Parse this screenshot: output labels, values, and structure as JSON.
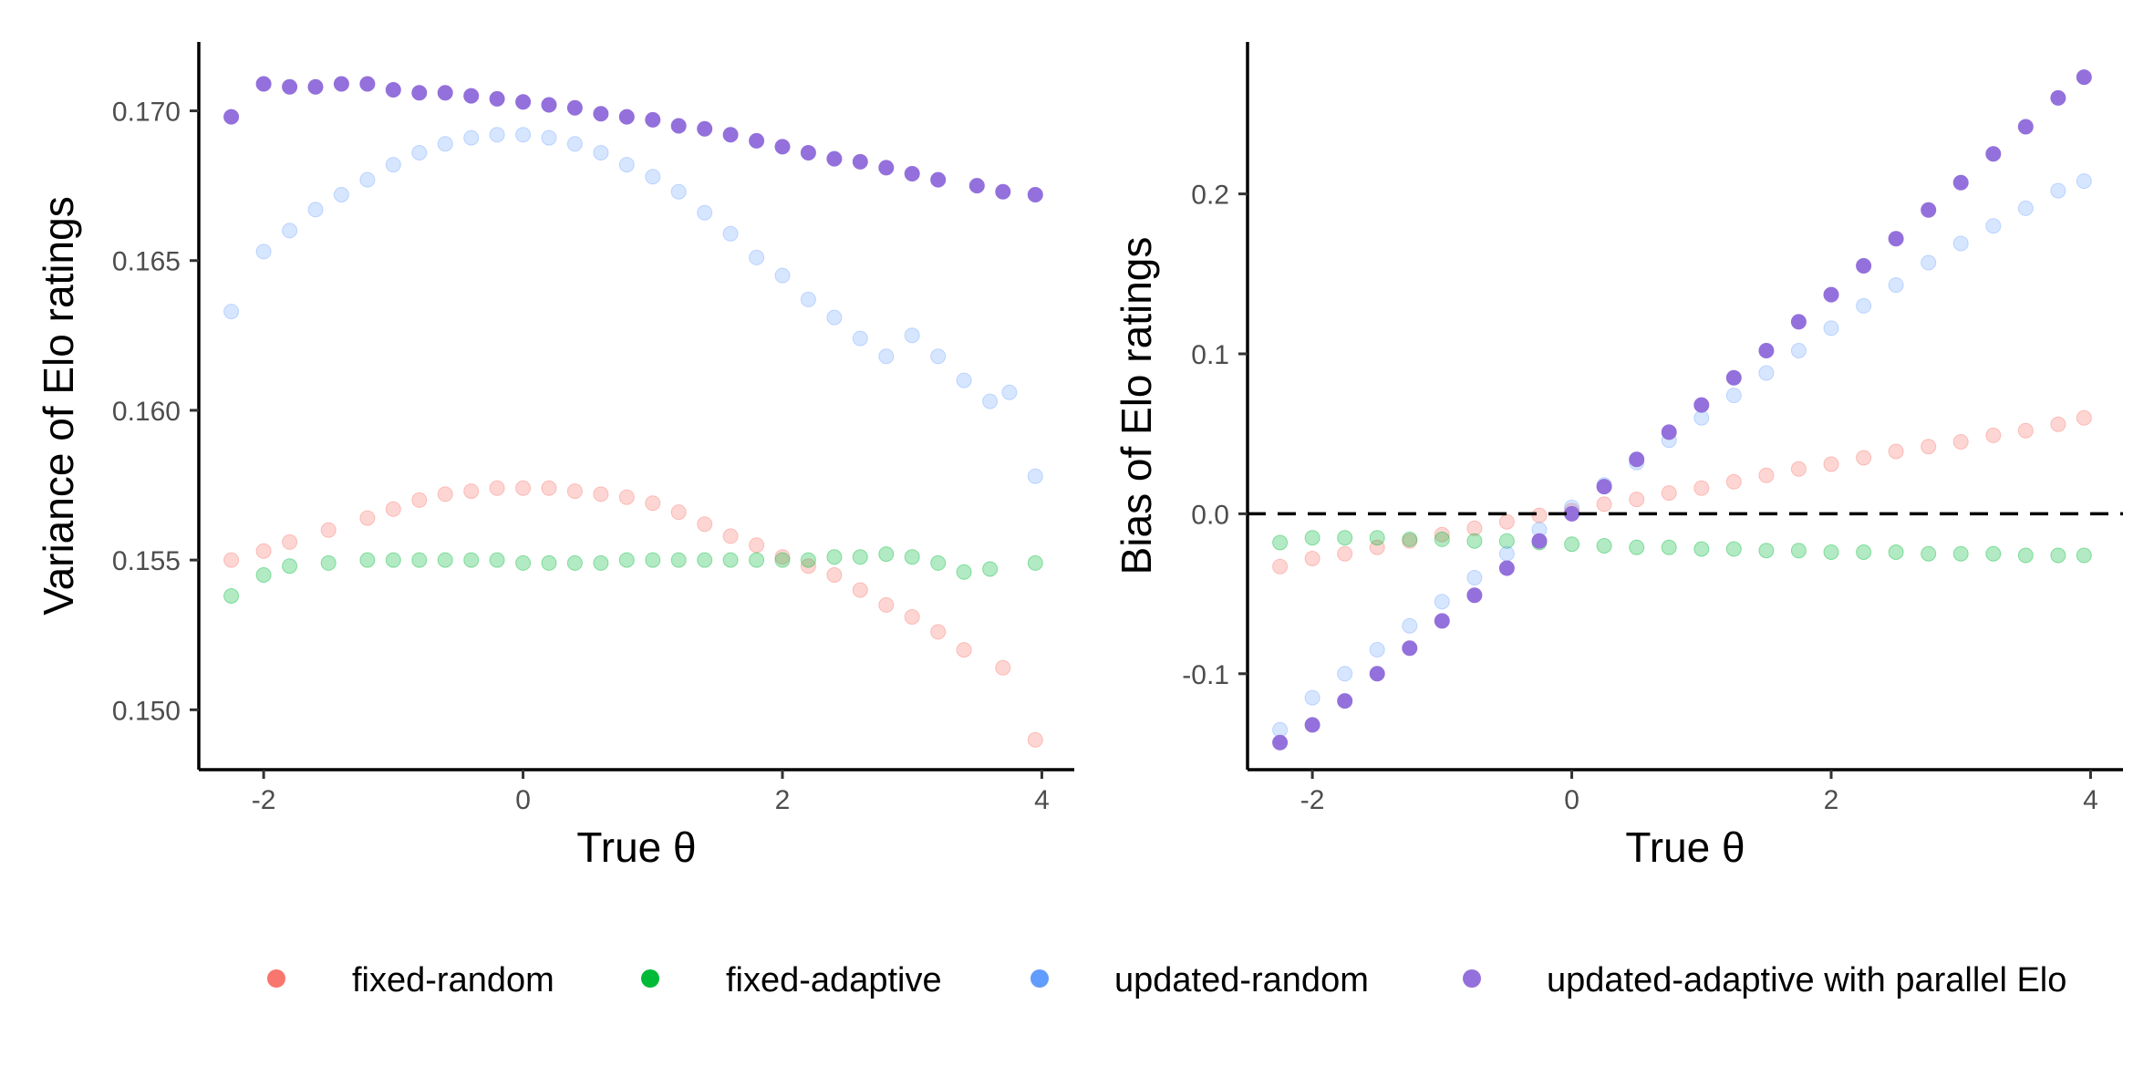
{
  "chart_data": [
    {
      "type": "scatter",
      "panel": "left",
      "xlabel": "True θ",
      "ylabel": "Variance of Elo ratings",
      "xlim": [
        -2.5,
        4.25
      ],
      "ylim": [
        0.148,
        0.1723
      ],
      "xticks": [
        -2,
        0,
        2,
        4
      ],
      "xtick_labels": [
        "-2",
        "0",
        "2",
        "4"
      ],
      "yticks": [
        0.15,
        0.155,
        0.16,
        0.165,
        0.17
      ],
      "ytick_labels": [
        "0.150",
        "0.155",
        "0.160",
        "0.165",
        "0.170"
      ],
      "grid": false,
      "series": [
        {
          "name": "fixed-random",
          "color": "#F8766D",
          "x": [
            -2.25,
            -2.0,
            -1.8,
            -1.5,
            -1.2,
            -1.0,
            -0.8,
            -0.6,
            -0.4,
            -0.2,
            0.0,
            0.2,
            0.4,
            0.6,
            0.8,
            1.0,
            1.2,
            1.4,
            1.6,
            1.8,
            2.0,
            2.2,
            2.4,
            2.6,
            2.8,
            3.0,
            3.2,
            3.4,
            3.7,
            3.95
          ],
          "y": [
            0.155,
            0.1553,
            0.1556,
            0.156,
            0.1564,
            0.1567,
            0.157,
            0.1572,
            0.1573,
            0.1574,
            0.1574,
            0.1574,
            0.1573,
            0.1572,
            0.1571,
            0.1569,
            0.1566,
            0.1562,
            0.1558,
            0.1555,
            0.1551,
            0.1548,
            0.1545,
            0.154,
            0.1535,
            0.1531,
            0.1526,
            0.152,
            0.1514,
            0.149
          ]
        },
        {
          "name": "fixed-adaptive",
          "color": "#00BA38",
          "x": [
            -2.25,
            -2.0,
            -1.8,
            -1.5,
            -1.2,
            -1.0,
            -0.8,
            -0.6,
            -0.4,
            -0.2,
            0.0,
            0.2,
            0.4,
            0.6,
            0.8,
            1.0,
            1.2,
            1.4,
            1.6,
            1.8,
            2.0,
            2.2,
            2.4,
            2.6,
            2.8,
            3.0,
            3.2,
            3.4,
            3.6,
            3.95
          ],
          "y": [
            0.1538,
            0.1545,
            0.1548,
            0.1549,
            0.155,
            0.155,
            0.155,
            0.155,
            0.155,
            0.155,
            0.1549,
            0.1549,
            0.1549,
            0.1549,
            0.155,
            0.155,
            0.155,
            0.155,
            0.155,
            0.155,
            0.155,
            0.155,
            0.1551,
            0.1551,
            0.1552,
            0.1551,
            0.1549,
            0.1546,
            0.1547,
            0.1549
          ]
        },
        {
          "name": "updated-random",
          "color": "#619CFF",
          "x": [
            -2.25,
            -2.0,
            -1.8,
            -1.6,
            -1.4,
            -1.2,
            -1.0,
            -0.8,
            -0.6,
            -0.4,
            -0.2,
            0.0,
            0.2,
            0.4,
            0.6,
            0.8,
            1.0,
            1.2,
            1.4,
            1.6,
            1.8,
            2.0,
            2.2,
            2.4,
            2.6,
            2.8,
            3.0,
            3.2,
            3.4,
            3.6,
            3.75,
            3.95
          ],
          "y": [
            0.1633,
            0.1653,
            0.166,
            0.1667,
            0.1672,
            0.1677,
            0.1682,
            0.1686,
            0.1689,
            0.1691,
            0.1692,
            0.1692,
            0.1691,
            0.1689,
            0.1686,
            0.1682,
            0.1678,
            0.1673,
            0.1666,
            0.1659,
            0.1651,
            0.1645,
            0.1637,
            0.1631,
            0.1624,
            0.1618,
            0.1625,
            0.1618,
            0.161,
            0.1603,
            0.1606,
            0.1578
          ]
        },
        {
          "name": "updated-adaptive with parallel Elo",
          "color": "#9370DB",
          "x": [
            -2.25,
            -2.0,
            -1.8,
            -1.6,
            -1.4,
            -1.2,
            -1.0,
            -0.8,
            -0.6,
            -0.4,
            -0.2,
            0.0,
            0.2,
            0.4,
            0.6,
            0.8,
            1.0,
            1.2,
            1.4,
            1.6,
            1.8,
            2.0,
            2.2,
            2.4,
            2.6,
            2.8,
            3.0,
            3.2,
            3.5,
            3.7,
            3.95
          ],
          "y": [
            0.1698,
            0.1709,
            0.1708,
            0.1708,
            0.1709,
            0.1709,
            0.1707,
            0.1706,
            0.1706,
            0.1705,
            0.1704,
            0.1703,
            0.1702,
            0.1701,
            0.1699,
            0.1698,
            0.1697,
            0.1695,
            0.1694,
            0.1692,
            0.169,
            0.1688,
            0.1686,
            0.1684,
            0.1683,
            0.1681,
            0.1679,
            0.1677,
            0.1675,
            0.1673,
            0.1672
          ]
        }
      ]
    },
    {
      "type": "scatter",
      "panel": "right",
      "xlabel": "True θ",
      "ylabel": "Bias of Elo ratings",
      "xlim": [
        -2.5,
        4.25
      ],
      "ylim": [
        -0.16,
        0.295
      ],
      "xticks": [
        -2,
        0,
        2,
        4
      ],
      "xtick_labels": [
        "-2",
        "0",
        "2",
        "4"
      ],
      "yticks": [
        -0.1,
        0.0,
        0.1,
        0.2
      ],
      "ytick_labels": [
        "-0.1",
        "0.0",
        "0.1",
        "0.2"
      ],
      "reference_line": {
        "y": 0.0,
        "style": "dashed"
      },
      "grid": false,
      "series": [
        {
          "name": "fixed-random",
          "color": "#F8766D",
          "x": [
            -2.25,
            -2.0,
            -1.75,
            -1.5,
            -1.25,
            -1.0,
            -0.75,
            -0.5,
            -0.25,
            0.0,
            0.25,
            0.5,
            0.75,
            1.0,
            1.25,
            1.5,
            1.75,
            2.0,
            2.25,
            2.5,
            2.75,
            3.0,
            3.25,
            3.5,
            3.75,
            3.95
          ],
          "y": [
            -0.033,
            -0.028,
            -0.025,
            -0.021,
            -0.017,
            -0.013,
            -0.009,
            -0.005,
            -0.001,
            0.002,
            0.006,
            0.009,
            0.013,
            0.016,
            0.02,
            0.024,
            0.028,
            0.031,
            0.035,
            0.039,
            0.042,
            0.045,
            0.049,
            0.052,
            0.056,
            0.06
          ]
        },
        {
          "name": "fixed-adaptive",
          "color": "#00BA38",
          "x": [
            -2.25,
            -2.0,
            -1.75,
            -1.5,
            -1.25,
            -1.0,
            -0.75,
            -0.5,
            -0.25,
            0.0,
            0.25,
            0.5,
            0.75,
            1.0,
            1.25,
            1.5,
            1.75,
            2.0,
            2.25,
            2.5,
            2.75,
            3.0,
            3.25,
            3.5,
            3.75,
            3.95
          ],
          "y": [
            -0.018,
            -0.015,
            -0.015,
            -0.015,
            -0.016,
            -0.016,
            -0.017,
            -0.017,
            -0.018,
            -0.019,
            -0.02,
            -0.021,
            -0.021,
            -0.022,
            -0.022,
            -0.023,
            -0.023,
            -0.024,
            -0.024,
            -0.024,
            -0.025,
            -0.025,
            -0.025,
            -0.026,
            -0.026,
            -0.026
          ]
        },
        {
          "name": "updated-random",
          "color": "#619CFF",
          "x": [
            -2.25,
            -2.0,
            -1.75,
            -1.5,
            -1.25,
            -1.0,
            -0.75,
            -0.5,
            -0.25,
            0.0,
            0.25,
            0.5,
            0.75,
            1.0,
            1.25,
            1.5,
            1.75,
            2.0,
            2.25,
            2.5,
            2.75,
            3.0,
            3.25,
            3.5,
            3.75,
            3.95
          ],
          "y": [
            -0.135,
            -0.115,
            -0.1,
            -0.085,
            -0.07,
            -0.055,
            -0.04,
            -0.025,
            -0.01,
            0.004,
            0.018,
            0.032,
            0.046,
            0.06,
            0.074,
            0.088,
            0.102,
            0.116,
            0.13,
            0.143,
            0.157,
            0.169,
            0.18,
            0.191,
            0.202,
            0.208
          ]
        },
        {
          "name": "updated-adaptive with parallel Elo",
          "color": "#9370DB",
          "x": [
            -2.25,
            -2.0,
            -1.75,
            -1.5,
            -1.25,
            -1.0,
            -0.75,
            -0.5,
            -0.25,
            0.0,
            0.25,
            0.5,
            0.75,
            1.0,
            1.25,
            1.5,
            1.75,
            2.0,
            2.25,
            2.5,
            2.75,
            3.0,
            3.25,
            3.5,
            3.75,
            3.95
          ],
          "y": [
            -0.143,
            -0.132,
            -0.117,
            -0.1,
            -0.084,
            -0.067,
            -0.051,
            -0.034,
            -0.017,
            0.0,
            0.017,
            0.034,
            0.051,
            0.068,
            0.085,
            0.102,
            0.12,
            0.137,
            0.155,
            0.172,
            0.19,
            0.207,
            0.225,
            0.242,
            0.26,
            0.273
          ]
        }
      ]
    }
  ],
  "legend": {
    "position": "bottom",
    "items": [
      {
        "label": "fixed-random",
        "color": "#F8766D"
      },
      {
        "label": "fixed-adaptive",
        "color": "#00BA38"
      },
      {
        "label": "updated-random",
        "color": "#619CFF"
      },
      {
        "label": "updated-adaptive with parallel Elo",
        "color": "#9370DB"
      }
    ]
  }
}
